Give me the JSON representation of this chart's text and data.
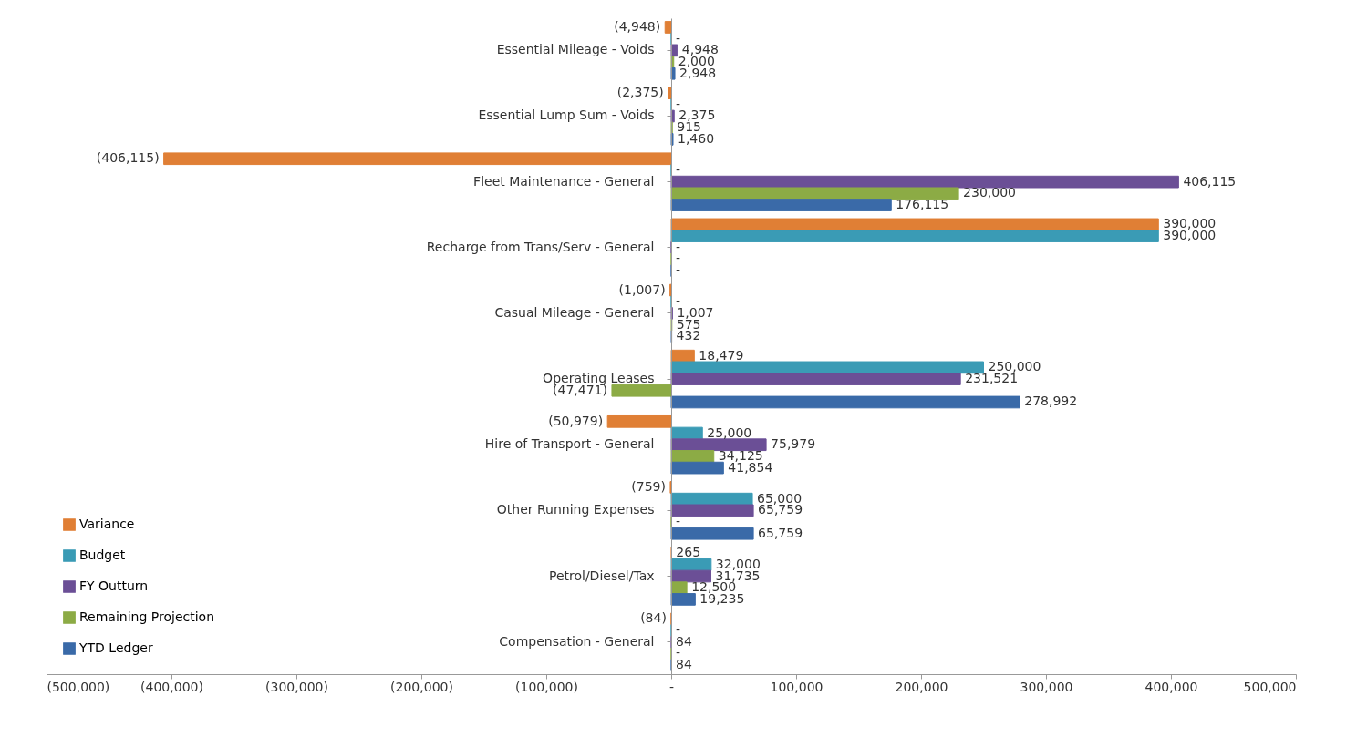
{
  "chart_data": {
    "type": "bar",
    "orientation": "horizontal",
    "categories": [
      "Essential Mileage - Voids",
      "Essential Lump Sum - Voids",
      "Fleet Maintenance - General",
      "Recharge from Trans/Serv - General",
      "Casual Mileage - General",
      "Operating Leases",
      "Hire of Transport - General",
      "Other Running Expenses",
      "Petrol/Diesel/Tax",
      "Compensation - General"
    ],
    "series": [
      {
        "name": "Variance",
        "color": "#e07f35",
        "values": [
          -4948,
          -2375,
          -406115,
          390000,
          -1007,
          18479,
          -50979,
          -759,
          265,
          -84
        ],
        "value_labels": [
          "(4,948)",
          "(2,375)",
          "(406,115)",
          "390,000",
          "(1,007)",
          "18,479",
          "(50,979)",
          "(759)",
          "265",
          "(84)"
        ]
      },
      {
        "name": "Budget",
        "color": "#3a9bb5",
        "values": [
          0,
          0,
          0,
          390000,
          0,
          250000,
          25000,
          65000,
          32000,
          0
        ],
        "value_labels": [
          "-",
          "-",
          "-",
          "390,000",
          "-",
          "250,000",
          "25,000",
          "65,000",
          "32,000",
          "-"
        ]
      },
      {
        "name": "FY Outturn",
        "color": "#6b4f96",
        "values": [
          4948,
          2375,
          406115,
          0,
          1007,
          231521,
          75979,
          65759,
          31735,
          84
        ],
        "value_labels": [
          "4,948",
          "2,375",
          "406,115",
          "-",
          "1,007",
          "231,521",
          "75,979",
          "65,759",
          "31,735",
          "84"
        ]
      },
      {
        "name": "Remaining Projection",
        "color": "#8cab45",
        "values": [
          2000,
          915,
          230000,
          0,
          575,
          -47471,
          34125,
          0,
          12500,
          0
        ],
        "value_labels": [
          "2,000",
          "915",
          "230,000",
          "-",
          "575",
          "(47,471)",
          "34,125",
          "-",
          "12,500",
          "-"
        ]
      },
      {
        "name": "YTD Ledger",
        "color": "#3a6aa8",
        "values": [
          2948,
          1460,
          176115,
          0,
          432,
          278992,
          41854,
          65759,
          19235,
          84
        ],
        "value_labels": [
          "2,948",
          "1,460",
          "176,115",
          "-",
          "432",
          "278,992",
          "41,854",
          "65,759",
          "19,235",
          "84"
        ]
      }
    ],
    "xlim": [
      -500000,
      500000
    ],
    "xticks": [
      {
        "value": -500000,
        "label": "(500,000)"
      },
      {
        "value": -400000,
        "label": "(400,000)"
      },
      {
        "value": -300000,
        "label": "(300,000)"
      },
      {
        "value": -200000,
        "label": "(200,000)"
      },
      {
        "value": -100000,
        "label": "(100,000)"
      },
      {
        "value": 0,
        "label": "-"
      },
      {
        "value": 100000,
        "label": "100,000"
      },
      {
        "value": 200000,
        "label": "200,000"
      },
      {
        "value": 300000,
        "label": "300,000"
      },
      {
        "value": 400000,
        "label": "400,000"
      },
      {
        "value": 500000,
        "label": "500,000"
      }
    ],
    "grid": false,
    "legend": "bottom left"
  }
}
